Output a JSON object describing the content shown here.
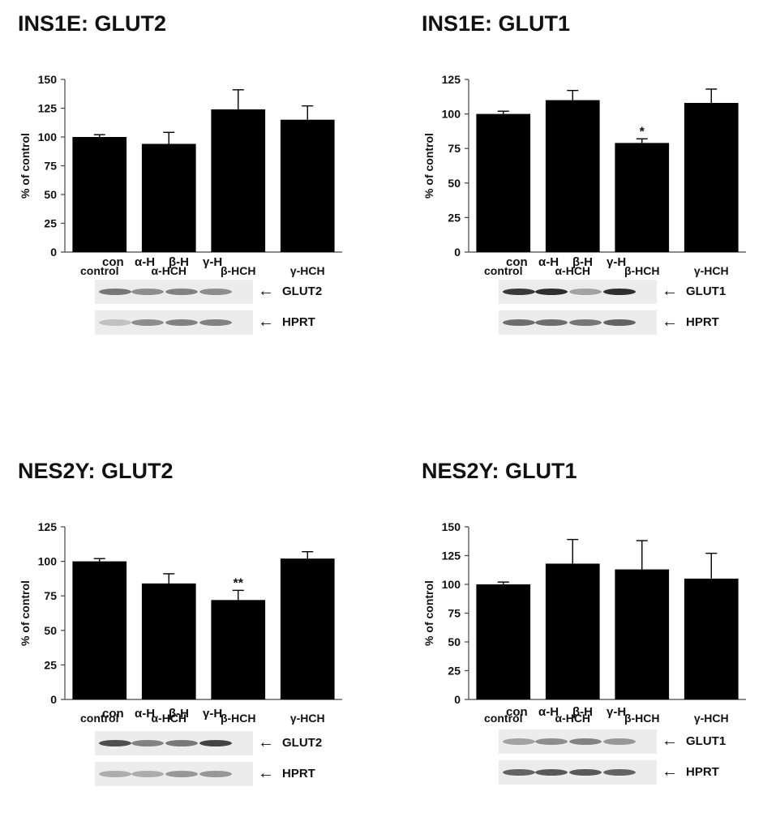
{
  "panels": [
    {
      "title": "INS1E: GLUT2",
      "chart_data": {
        "type": "bar",
        "categories": [
          "control",
          "α-HCH",
          "β-HCH",
          "γ-HCH"
        ],
        "values": [
          100,
          94,
          124,
          115
        ],
        "errors": [
          2,
          10,
          17,
          12
        ],
        "significance": [
          "",
          "",
          "",
          ""
        ],
        "ylabel": "% of control",
        "ylim": [
          0,
          150
        ],
        "yticks": [
          0,
          25,
          50,
          75,
          100,
          125,
          150
        ],
        "bar_color": "#000000"
      },
      "blot": {
        "lanes": [
          "con",
          "α-H",
          "β-H",
          "γ-H"
        ],
        "targets": [
          "GLUT2",
          "HPRT"
        ],
        "arrow": "←",
        "band_intensity": [
          [
            0.55,
            0.45,
            0.5,
            0.45
          ],
          [
            0.2,
            0.45,
            0.5,
            0.5
          ]
        ]
      }
    },
    {
      "title": "INS1E: GLUT1",
      "chart_data": {
        "type": "bar",
        "categories": [
          "control",
          "α-HCH",
          "β-HCH",
          "γ-HCH"
        ],
        "values": [
          100,
          110,
          79,
          108
        ],
        "errors": [
          2,
          7,
          3,
          10
        ],
        "significance": [
          "",
          "",
          "*",
          ""
        ],
        "ylabel": "% of control",
        "ylim": [
          0,
          125
        ],
        "yticks": [
          0,
          25,
          50,
          75,
          100,
          125
        ],
        "bar_color": "#000000"
      },
      "blot": {
        "lanes": [
          "con",
          "α-H",
          "β-H",
          "γ-H"
        ],
        "targets": [
          "GLUT1",
          "HPRT"
        ],
        "arrow": "←",
        "band_intensity": [
          [
            0.85,
            0.9,
            0.35,
            0.9
          ],
          [
            0.6,
            0.6,
            0.55,
            0.65
          ]
        ]
      }
    },
    {
      "title": "NES2Y: GLUT2",
      "chart_data": {
        "type": "bar",
        "categories": [
          "control",
          "α-HCH",
          "β-HCH",
          "γ-HCH"
        ],
        "values": [
          100,
          84,
          72,
          102
        ],
        "errors": [
          2,
          7,
          7,
          5
        ],
        "significance": [
          "",
          "",
          "**",
          ""
        ],
        "ylabel": "% of control",
        "ylim": [
          0,
          125
        ],
        "yticks": [
          0,
          25,
          50,
          75,
          100,
          125
        ],
        "bar_color": "#000000"
      },
      "blot": {
        "lanes": [
          "con",
          "α-H",
          "β-H",
          "γ-H"
        ],
        "targets": [
          "GLUT2",
          "HPRT"
        ],
        "arrow": "←",
        "band_intensity": [
          [
            0.75,
            0.5,
            0.55,
            0.8
          ],
          [
            0.3,
            0.3,
            0.4,
            0.4
          ]
        ]
      }
    },
    {
      "title": "NES2Y: GLUT1",
      "chart_data": {
        "type": "bar",
        "categories": [
          "control",
          "α-HCH",
          "β-HCH",
          "γ-HCH"
        ],
        "values": [
          100,
          118,
          113,
          105
        ],
        "errors": [
          2,
          21,
          25,
          22
        ],
        "significance": [
          "",
          "",
          "",
          ""
        ],
        "ylabel": "% of control",
        "ylim": [
          0,
          150
        ],
        "yticks": [
          0,
          25,
          50,
          75,
          100,
          125,
          150
        ],
        "bar_color": "#000000"
      },
      "blot": {
        "lanes": [
          "con",
          "α-H",
          "β-H",
          "γ-H"
        ],
        "targets": [
          "GLUT1",
          "HPRT"
        ],
        "arrow": "←",
        "band_intensity": [
          [
            0.35,
            0.45,
            0.5,
            0.4
          ],
          [
            0.65,
            0.7,
            0.7,
            0.65
          ]
        ]
      }
    }
  ]
}
